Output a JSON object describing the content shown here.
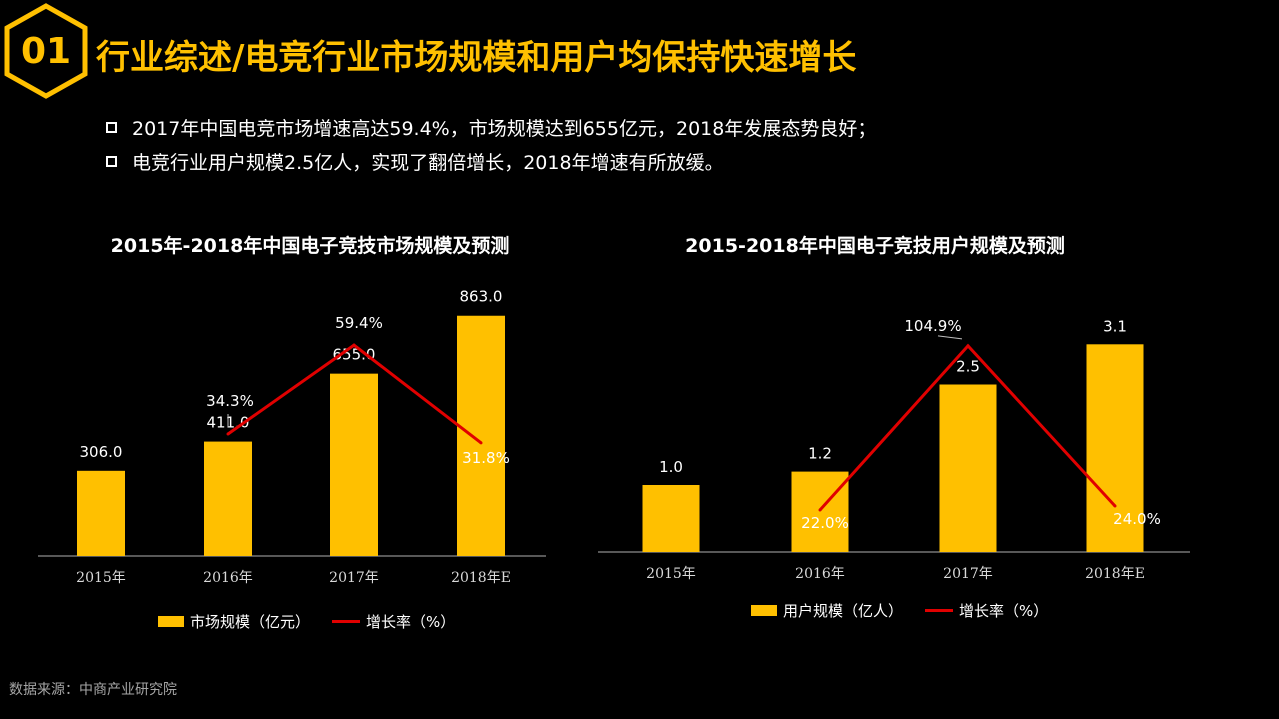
{
  "header": {
    "badge_number": "01",
    "title": "行业综述/电竞行业市场规模和用户均保持快速增长",
    "accent_color": "#FFC000"
  },
  "bullets": [
    "2017年中国电竞市场增速高达59.4%，市场规模达到655亿元，2018年发展态势良好；",
    "电竞行业用户规模2.5亿人，实现了翻倍增长，2018年增速有所放缓。"
  ],
  "chart_data": [
    {
      "type": "bar",
      "title": "2015年-2018年中国电子竞技市场规模及预测",
      "categories": [
        "2015年",
        "2016年",
        "2017年",
        "2018年E"
      ],
      "series": [
        {
          "name": "市场规模（亿元）",
          "type": "bar",
          "values": [
            306.0,
            411.0,
            655.0,
            863.0
          ],
          "labels": [
            "306.0",
            "411.0",
            "655.0",
            "863.0"
          ],
          "color": "#FFC000"
        },
        {
          "name": "增长率（%）",
          "type": "line",
          "values": [
            null,
            34.3,
            59.4,
            31.8
          ],
          "labels": [
            "",
            "34.3%",
            "59.4%",
            "31.8%"
          ],
          "color": "#E00000"
        }
      ],
      "legend": "bottom",
      "grid": false
    },
    {
      "type": "bar",
      "title": "2015-2018年中国电子竞技用户规模及预测",
      "categories": [
        "2015年",
        "2016年",
        "2017年",
        "2018年E"
      ],
      "series": [
        {
          "name": "用户规模（亿人）",
          "type": "bar",
          "values": [
            1.0,
            1.2,
            2.5,
            3.1
          ],
          "labels": [
            "1.0",
            "1.2",
            "2.5",
            "3.1"
          ],
          "color": "#FFC000"
        },
        {
          "name": "增长率（%）",
          "type": "line",
          "values": [
            null,
            22.0,
            104.9,
            24.0
          ],
          "labels": [
            "",
            "22.0%",
            "104.9%",
            "24.0%"
          ],
          "color": "#E00000"
        }
      ],
      "legend": "bottom",
      "grid": false
    }
  ],
  "source": "数据来源：中商产业研究院"
}
